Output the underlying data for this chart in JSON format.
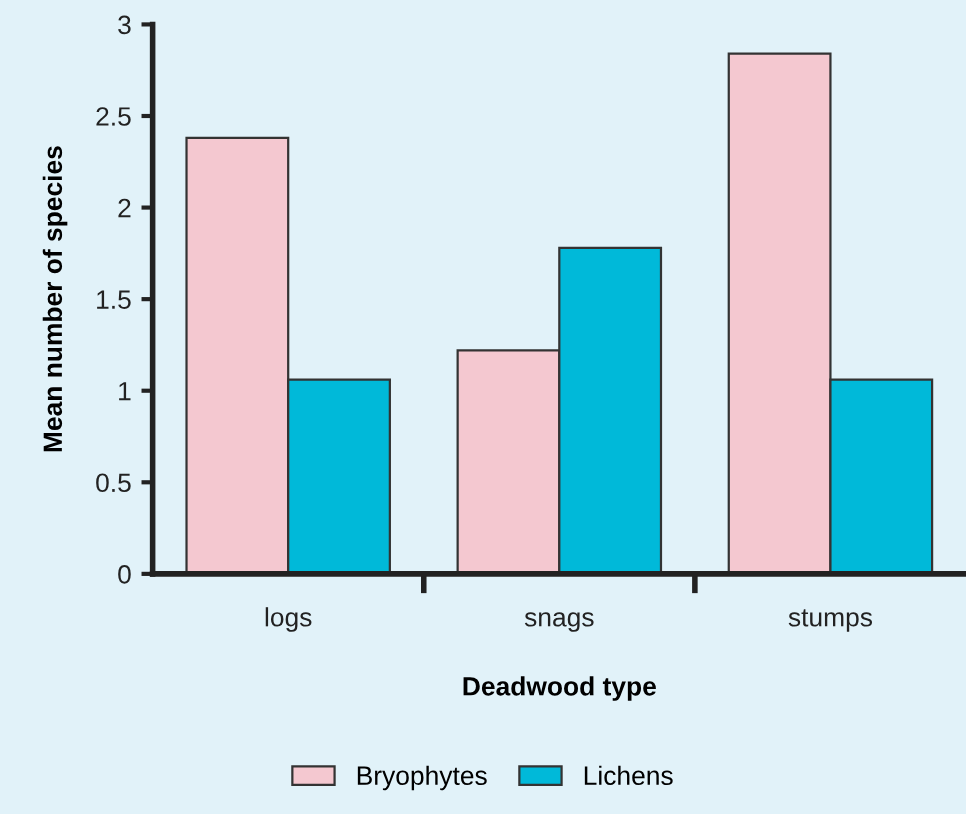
{
  "chart_data": {
    "type": "bar",
    "xlabel": "Deadwood type",
    "ylabel": "Mean number of species",
    "categories": [
      "logs",
      "snags",
      "stumps"
    ],
    "series": [
      {
        "name": "Bryophytes",
        "color": "#f4c8d0",
        "values": [
          2.38,
          1.22,
          2.84
        ]
      },
      {
        "name": "Lichens",
        "color": "#00b9d9",
        "values": [
          1.06,
          1.78,
          1.06
        ]
      }
    ],
    "ylim": [
      0,
      3
    ],
    "yticks": [
      0,
      0.5,
      1,
      1.5,
      2,
      2.5,
      3
    ],
    "grid": false,
    "legend": "bottom"
  }
}
